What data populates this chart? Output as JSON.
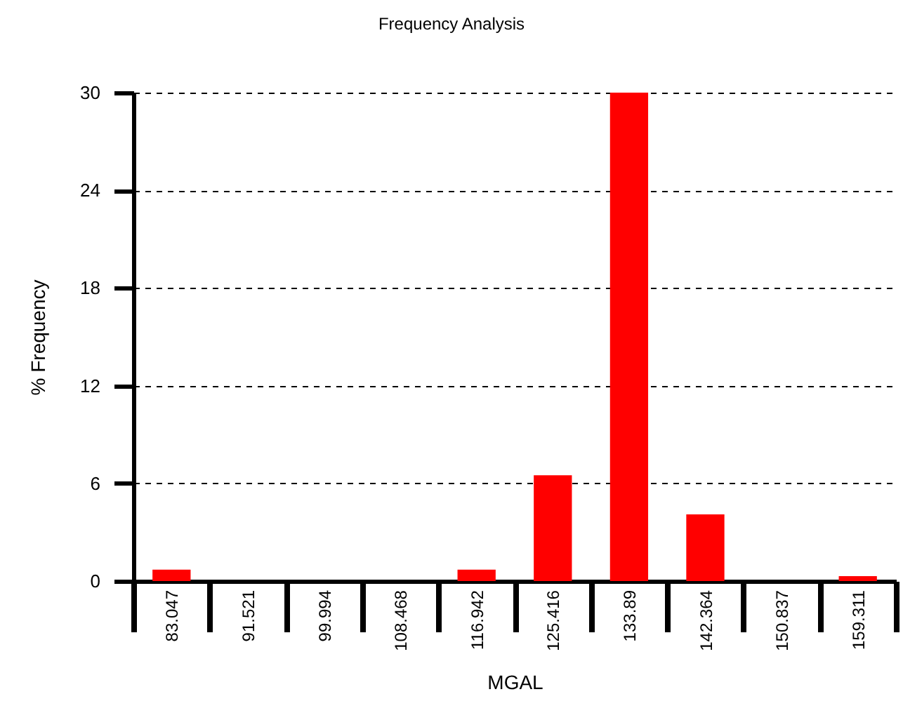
{
  "chart_data": {
    "type": "bar",
    "title": "Frequency Analysis",
    "xlabel": "MGAL",
    "ylabel": "% Frequency",
    "categories": [
      "83.047",
      "91.521",
      "99.994",
      "108.468",
      "116.942",
      "125.416",
      "133.89",
      "142.364",
      "150.837",
      "159.311"
    ],
    "values": [
      0.7,
      null,
      null,
      null,
      0.7,
      6.5,
      30,
      4.1,
      null,
      0.3
    ],
    "color": "#ff0000",
    "ylim": [
      0,
      30
    ],
    "yticks": [
      0,
      6,
      12,
      18,
      24,
      30
    ],
    "grid": "y"
  }
}
